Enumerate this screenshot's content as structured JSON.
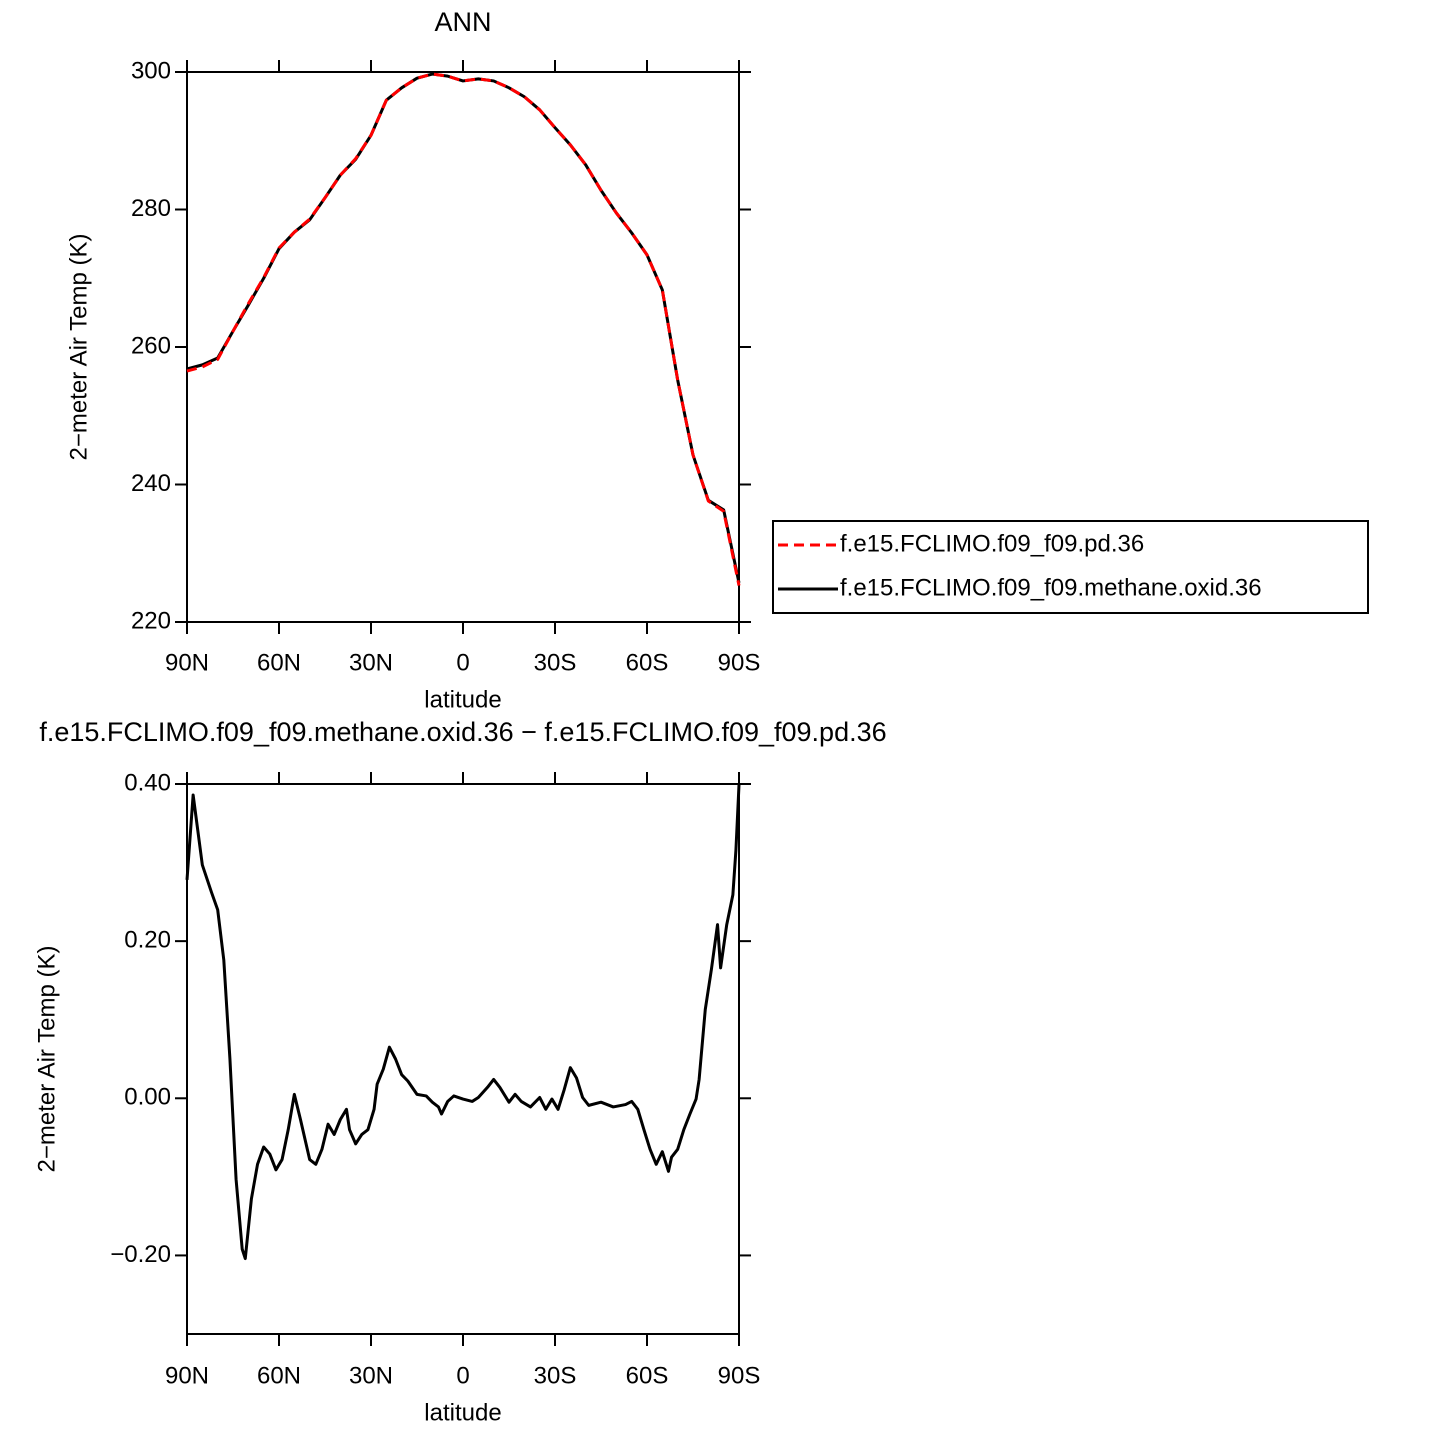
{
  "chart_data": [
    {
      "type": "line",
      "title": "ANN",
      "xlabel": "latitude",
      "ylabel": "2−meter Air Temp (K)",
      "legend": "right",
      "x": [
        90,
        85,
        80,
        75,
        70,
        65,
        60,
        55,
        50,
        45,
        40,
        35,
        30,
        25,
        20,
        15,
        10,
        5,
        0,
        -5,
        -10,
        -15,
        -20,
        -25,
        -30,
        -35,
        -40,
        -45,
        -50,
        -55,
        -60,
        -65,
        -70,
        -75,
        -80,
        -85,
        -90
      ],
      "xlim": [
        90,
        -90
      ],
      "xticks": [
        {
          "value": 90,
          "label": "90N"
        },
        {
          "value": 60,
          "label": "60N"
        },
        {
          "value": 30,
          "label": "30N"
        },
        0,
        {
          "value": -30,
          "label": "30S"
        },
        {
          "value": -60,
          "label": "60S"
        },
        {
          "value": -90,
          "label": "90S"
        }
      ],
      "ylim": [
        220,
        300
      ],
      "yticks": [
        220,
        240,
        260,
        280,
        300
      ],
      "series": [
        {
          "name": "f.e15.FCLIMO.f09_f09.pd.36",
          "color": "#ff0000",
          "dash": "dashed",
          "values": [
            256.5,
            257.1,
            258.2,
            262.3,
            266.3,
            270.1,
            274.4,
            276.7,
            278.6,
            281.7,
            285,
            287.4,
            290.8,
            295.9,
            297.7,
            299.1,
            299.7,
            299.4,
            298.7,
            299,
            298.7,
            297.7,
            296.4,
            294.5,
            291.9,
            289.4,
            286.5,
            282.8,
            279.5,
            276.6,
            273.4,
            268.3,
            255.2,
            244.3,
            237.6,
            236.1,
            225.3
          ]
        },
        {
          "name": "f.e15.FCLIMO.f09_f09.methane.oxid.36",
          "color": "#000000",
          "dash": "solid",
          "values": [
            256.8,
            257.4,
            258.4,
            262.3,
            266.1,
            270,
            274.3,
            276.7,
            278.5,
            281.7,
            285,
            287.3,
            290.8,
            295.9,
            297.7,
            299.1,
            299.7,
            299.4,
            298.7,
            299,
            298.7,
            297.7,
            296.4,
            294.5,
            291.9,
            289.4,
            286.5,
            282.8,
            279.5,
            276.6,
            273.4,
            268.3,
            255.2,
            244.3,
            237.7,
            236.3,
            225.7
          ]
        }
      ]
    },
    {
      "type": "line",
      "title": "f.e15.FCLIMO.f09_f09.methane.oxid.36 − f.e15.FCLIMO.f09_f09.pd.36",
      "xlabel": "latitude",
      "ylabel": "2−meter Air Temp (K)",
      "x": [
        90,
        88,
        85,
        82,
        80,
        78,
        76,
        74,
        72,
        71,
        69,
        67,
        65,
        63,
        61,
        59,
        57,
        55,
        53,
        50,
        48,
        46,
        44,
        42,
        40,
        38,
        37,
        35,
        33,
        31,
        29,
        28,
        26,
        24,
        22,
        20,
        18,
        15,
        12,
        10,
        8,
        7,
        5,
        3,
        0,
        -3,
        -5,
        -8,
        -10,
        -12,
        -15,
        -17,
        -19,
        -22,
        -25,
        -27,
        -29,
        -31,
        -33,
        -35,
        -37,
        -39,
        -41,
        -45,
        -49,
        -53,
        -55,
        -57,
        -59,
        -61,
        -63,
        -65,
        -67,
        -68,
        -70,
        -72,
        -74,
        -76,
        -77,
        -79,
        -81,
        -83,
        -84,
        -86,
        -88,
        -89,
        -90
      ],
      "xlim": [
        90,
        -90
      ],
      "xticks": [
        {
          "value": 90,
          "label": "90N"
        },
        {
          "value": 60,
          "label": "60N"
        },
        {
          "value": 30,
          "label": "30N"
        },
        0,
        {
          "value": -30,
          "label": "30S"
        },
        {
          "value": -60,
          "label": "60S"
        },
        {
          "value": -90,
          "label": "90S"
        }
      ],
      "ylim": [
        -0.3,
        0.4
      ],
      "yticks": [
        {
          "value": -0.2,
          "label": "−0.20"
        },
        {
          "value": 0,
          "label": "0.00"
        },
        {
          "value": 0.2,
          "label": "0.20"
        },
        {
          "value": 0.4,
          "label": "0.40"
        }
      ],
      "series": [
        {
          "color": "#000000",
          "dash": "solid",
          "values": [
            0.278,
            0.386,
            0.297,
            0.262,
            0.24,
            0.176,
            0.05,
            -0.103,
            -0.192,
            -0.204,
            -0.128,
            -0.084,
            -0.062,
            -0.071,
            -0.091,
            -0.078,
            -0.04,
            0.005,
            -0.027,
            -0.078,
            -0.084,
            -0.065,
            -0.033,
            -0.046,
            -0.027,
            -0.014,
            -0.04,
            -0.058,
            -0.046,
            -0.04,
            -0.014,
            0.018,
            0.037,
            0.065,
            0.05,
            0.03,
            0.022,
            0.005,
            0.003,
            -0.005,
            -0.011,
            -0.02,
            -0.004,
            0.003,
            -0.001,
            -0.004,
            0.001,
            0.014,
            0.024,
            0.014,
            -0.005,
            0.005,
            -0.004,
            -0.011,
            0.001,
            -0.014,
            -0.001,
            -0.014,
            0.011,
            0.039,
            0.026,
            0.001,
            -0.009,
            -0.005,
            -0.011,
            -0.008,
            -0.004,
            -0.014,
            -0.04,
            -0.065,
            -0.084,
            -0.068,
            -0.093,
            -0.075,
            -0.065,
            -0.04,
            -0.02,
            -0.001,
            0.024,
            0.113,
            0.164,
            0.221,
            0.166,
            0.221,
            0.259,
            0.316,
            0.399
          ]
        }
      ]
    }
  ]
}
